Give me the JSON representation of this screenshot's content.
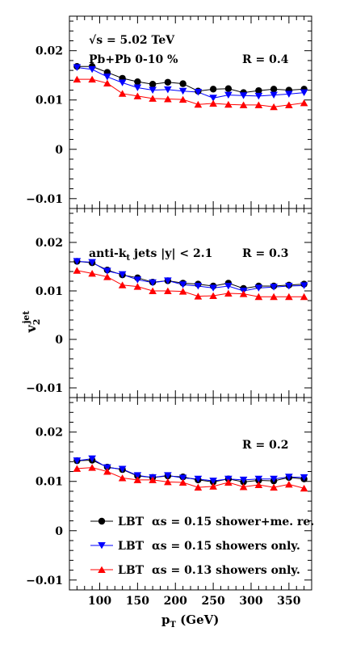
{
  "chart_data": [
    {
      "type": "line",
      "annotations": [
        "√s = 5.02 TeV",
        "Pb+Pb 0-10 %",
        "R = 0.4"
      ],
      "ylim": [
        -0.012,
        0.027
      ],
      "xlim": [
        60,
        380
      ],
      "x": [
        70,
        90,
        110,
        130,
        150,
        170,
        190,
        210,
        230,
        250,
        270,
        290,
        310,
        330,
        350,
        370
      ],
      "series": [
        {
          "name": "LBT αs = 0.15 shower+me. re.",
          "color": "#000000",
          "marker": "circle",
          "values": [
            0.0168,
            0.0168,
            0.0156,
            0.0144,
            0.0137,
            0.0132,
            0.0136,
            0.0133,
            0.0118,
            0.0122,
            0.0123,
            0.0115,
            0.0119,
            0.0122,
            0.012,
            0.0122
          ]
        },
        {
          "name": "LBT αs = 0.15 showers only.",
          "color": "#0000ff",
          "marker": "triangle-down",
          "values": [
            0.0166,
            0.0162,
            0.0147,
            0.0135,
            0.0125,
            0.012,
            0.0121,
            0.0118,
            0.0116,
            0.0104,
            0.011,
            0.0109,
            0.0108,
            0.011,
            0.0112,
            0.0115
          ]
        },
        {
          "name": "LBT αs = 0.13 showers only.",
          "color": "#ff0000",
          "marker": "triangle-up",
          "values": [
            0.0142,
            0.0142,
            0.0134,
            0.0113,
            0.0108,
            0.0103,
            0.0102,
            0.0101,
            0.0091,
            0.0093,
            0.0091,
            0.009,
            0.009,
            0.0086,
            0.009,
            0.0094
          ]
        }
      ]
    },
    {
      "type": "line",
      "annotations": [
        "anti-kt jets |y| < 2.1",
        "R = 0.3"
      ],
      "ylabel": "v2jet",
      "ylim": [
        -0.012,
        0.027
      ],
      "xlim": [
        60,
        380
      ],
      "x": [
        70,
        90,
        110,
        130,
        150,
        170,
        190,
        210,
        230,
        250,
        270,
        290,
        310,
        330,
        350,
        370
      ],
      "series": [
        {
          "name": "LBT αs = 0.15 shower+me. re.",
          "color": "#000000",
          "marker": "circle",
          "values": [
            0.0161,
            0.0158,
            0.0143,
            0.0133,
            0.0127,
            0.0118,
            0.0121,
            0.0116,
            0.0114,
            0.011,
            0.0116,
            0.0105,
            0.011,
            0.011,
            0.0112,
            0.0114
          ]
        },
        {
          "name": "LBT αs = 0.15 showers only.",
          "color": "#0000ff",
          "marker": "triangle-down",
          "values": [
            0.0161,
            0.0159,
            0.0141,
            0.0134,
            0.0123,
            0.0117,
            0.0121,
            0.0113,
            0.011,
            0.0106,
            0.011,
            0.01,
            0.0106,
            0.0108,
            0.011,
            0.0111
          ]
        },
        {
          "name": "LBT αs = 0.13 showers only.",
          "color": "#ff0000",
          "marker": "triangle-up",
          "values": [
            0.0142,
            0.0136,
            0.0129,
            0.0112,
            0.0109,
            0.01,
            0.01,
            0.0099,
            0.0089,
            0.009,
            0.0095,
            0.0094,
            0.0088,
            0.0088,
            0.0088,
            0.0088
          ]
        }
      ]
    },
    {
      "type": "line",
      "annotations": [
        "R = 0.2"
      ],
      "xlabel": "pT (GeV)",
      "ylim": [
        -0.012,
        0.027
      ],
      "xlim": [
        60,
        380
      ],
      "x": [
        70,
        90,
        110,
        130,
        150,
        170,
        190,
        210,
        230,
        250,
        270,
        290,
        310,
        330,
        350,
        370
      ],
      "series": [
        {
          "name": "LBT αs = 0.15 shower+me. re.",
          "color": "#000000",
          "marker": "circle",
          "values": [
            0.0142,
            0.0143,
            0.0129,
            0.0124,
            0.0111,
            0.0108,
            0.0111,
            0.0109,
            0.0103,
            0.0099,
            0.0105,
            0.0099,
            0.0102,
            0.0101,
            0.0108,
            0.0105
          ]
        },
        {
          "name": "LBT αs = 0.15 showers only.",
          "color": "#0000ff",
          "marker": "triangle-down",
          "values": [
            0.0142,
            0.0146,
            0.0128,
            0.0125,
            0.0112,
            0.0108,
            0.0112,
            0.0107,
            0.0105,
            0.0101,
            0.0105,
            0.0103,
            0.0105,
            0.0105,
            0.0109,
            0.0108
          ]
        },
        {
          "name": "LBT αs = 0.13 showers only.",
          "color": "#ff0000",
          "marker": "triangle-up",
          "values": [
            0.0126,
            0.0128,
            0.012,
            0.0107,
            0.0103,
            0.0103,
            0.0099,
            0.0098,
            0.0088,
            0.009,
            0.0098,
            0.0089,
            0.0093,
            0.0088,
            0.0094,
            0.0086
          ]
        }
      ]
    }
  ],
  "axes": {
    "y_ticks": [
      -0.01,
      0,
      0.01,
      0.02
    ],
    "y_tick_labels": [
      "−0.01",
      "0",
      "0.01",
      "0.02"
    ],
    "x_ticks": [
      100,
      150,
      200,
      250,
      300,
      350
    ],
    "x_tick_labels": [
      "100",
      "150",
      "200",
      "250",
      "300",
      "350"
    ]
  },
  "legend": {
    "placement": "bottom-center of lower panel",
    "prefix": "LBT",
    "items": [
      {
        "alpha_label": "αs = 0.15 shower+me. re.",
        "color": "#000000",
        "marker": "circle"
      },
      {
        "alpha_label": "αs = 0.15 showers only.",
        "color": "#0000ff",
        "marker": "triangle-down"
      },
      {
        "alpha_label": "αs = 0.13 showers only.",
        "color": "#ff0000",
        "marker": "triangle-up"
      }
    ]
  },
  "labels": {
    "sqrt_s": "√s = 5.02 TeV",
    "system": "Pb+Pb 0-10 %",
    "r_top": "R = 0.4",
    "jets_prefix": "anti-k",
    "jets_sub": "t",
    "jets_suffix": " jets |y| < 2.1",
    "r_mid": "R = 0.3",
    "r_bot": "R = 0.2",
    "ylabel_base": "v",
    "ylabel_sub": "2",
    "ylabel_sup": "jet",
    "xlabel_base": "p",
    "xlabel_sub": "T",
    "xlabel_suffix": " (GeV)"
  }
}
